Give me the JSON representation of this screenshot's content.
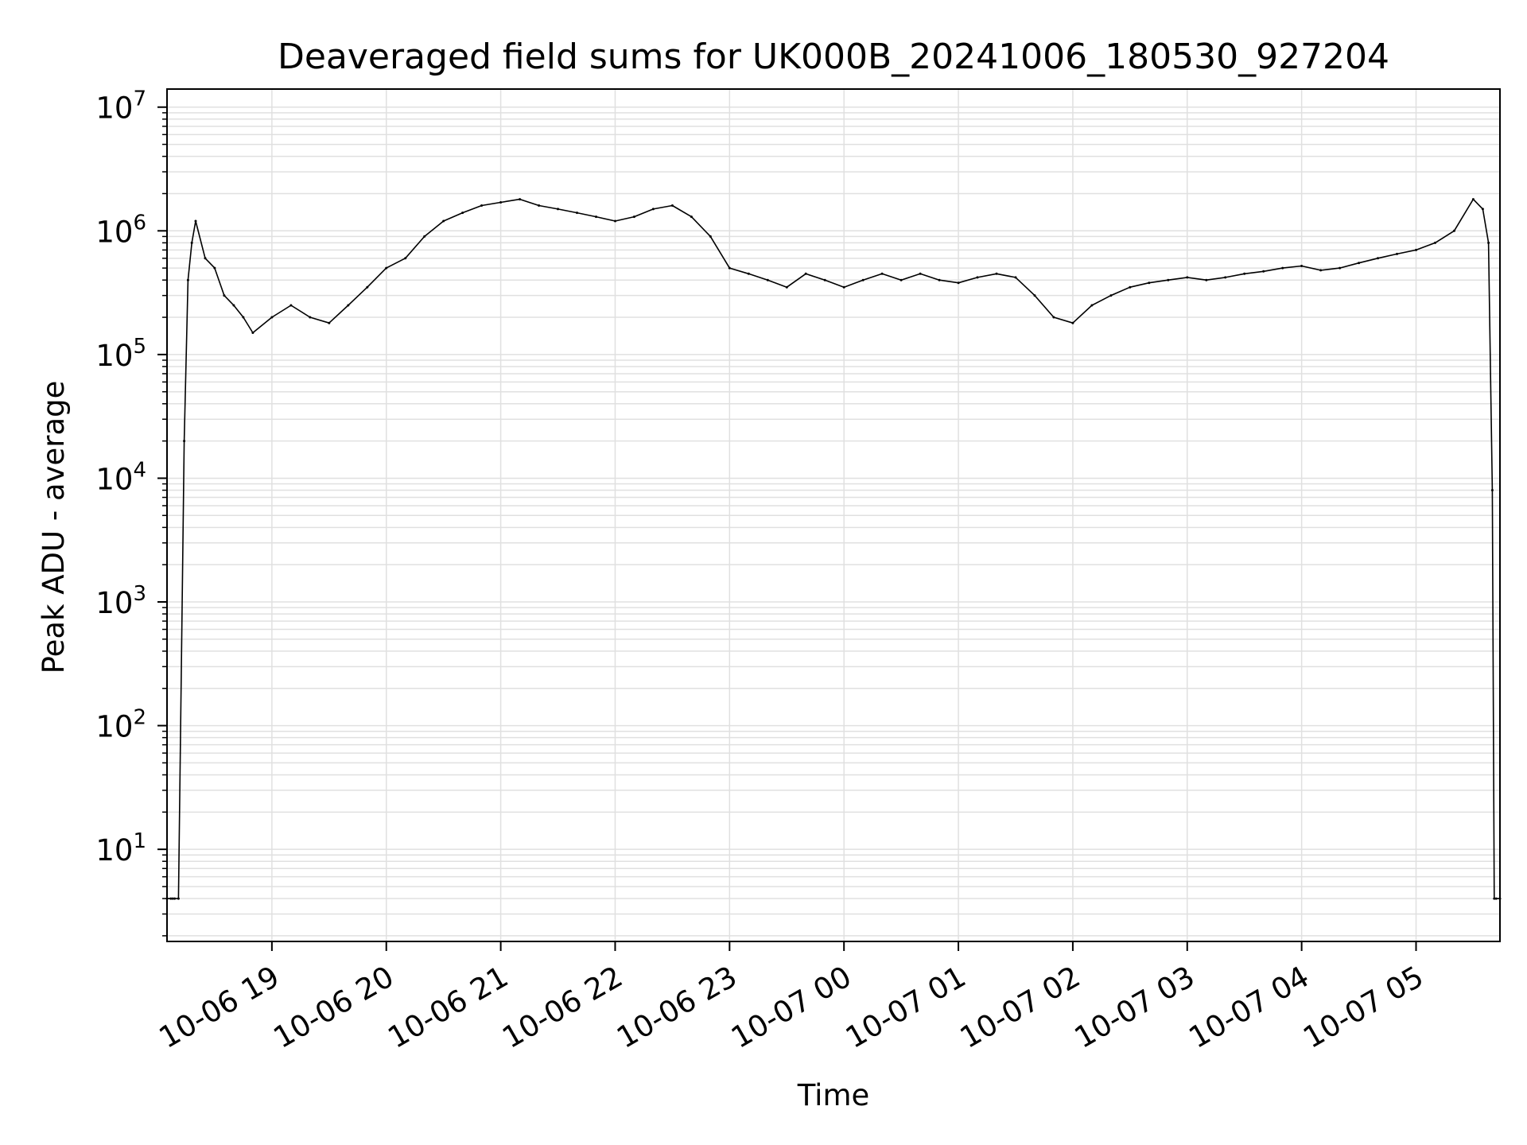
{
  "chart_data": {
    "type": "line",
    "title": "Deaveraged field sums for UK000B_20241006_180530_927204",
    "xlabel": "Time",
    "ylabel": "Peak ADU - average",
    "yscale": "log",
    "ylim": [
      1.8,
      14000000
    ],
    "xlim": [
      "2024-10-06 18:05",
      "2024-10-07 05:44"
    ],
    "grid": true,
    "line_color": "#000000",
    "grid_color": "#e0e0e0",
    "x_ticks": [
      {
        "value": "2024-10-06 19:00",
        "label": "10-06 19"
      },
      {
        "value": "2024-10-06 20:00",
        "label": "10-06 20"
      },
      {
        "value": "2024-10-06 21:00",
        "label": "10-06 21"
      },
      {
        "value": "2024-10-06 22:00",
        "label": "10-06 22"
      },
      {
        "value": "2024-10-06 23:00",
        "label": "10-06 23"
      },
      {
        "value": "2024-10-07 00:00",
        "label": "10-07 00"
      },
      {
        "value": "2024-10-07 01:00",
        "label": "10-07 01"
      },
      {
        "value": "2024-10-07 02:00",
        "label": "10-07 02"
      },
      {
        "value": "2024-10-07 03:00",
        "label": "10-07 03"
      },
      {
        "value": "2024-10-07 04:00",
        "label": "10-07 04"
      },
      {
        "value": "2024-10-07 05:00",
        "label": "10-07 05"
      }
    ],
    "y_ticks": [
      {
        "value": 10,
        "base": "10",
        "exp": "1"
      },
      {
        "value": 100,
        "base": "10",
        "exp": "2"
      },
      {
        "value": 1000,
        "base": "10",
        "exp": "3"
      },
      {
        "value": 10000,
        "base": "10",
        "exp": "4"
      },
      {
        "value": 100000,
        "base": "10",
        "exp": "5"
      },
      {
        "value": 1000000,
        "base": "10",
        "exp": "6"
      },
      {
        "value": 10000000,
        "base": "10",
        "exp": "7"
      }
    ],
    "series": [
      {
        "x": [
          "2024-10-06 18:05",
          "2024-10-06 18:07",
          "2024-10-06 18:08",
          "2024-10-06 18:09",
          "2024-10-06 18:11",
          "2024-10-06 18:14",
          "2024-10-06 18:16",
          "2024-10-06 18:18",
          "2024-10-06 18:20",
          "2024-10-06 18:25",
          "2024-10-06 18:30",
          "2024-10-06 18:35",
          "2024-10-06 18:40",
          "2024-10-06 18:45",
          "2024-10-06 18:50",
          "2024-10-06 19:00",
          "2024-10-06 19:10",
          "2024-10-06 19:20",
          "2024-10-06 19:30",
          "2024-10-06 19:40",
          "2024-10-06 19:50",
          "2024-10-06 20:00",
          "2024-10-06 20:10",
          "2024-10-06 20:20",
          "2024-10-06 20:30",
          "2024-10-06 20:40",
          "2024-10-06 20:50",
          "2024-10-06 21:00",
          "2024-10-06 21:10",
          "2024-10-06 21:20",
          "2024-10-06 21:30",
          "2024-10-06 21:40",
          "2024-10-06 21:50",
          "2024-10-06 22:00",
          "2024-10-06 22:10",
          "2024-10-06 22:20",
          "2024-10-06 22:30",
          "2024-10-06 22:40",
          "2024-10-06 22:50",
          "2024-10-06 23:00",
          "2024-10-06 23:10",
          "2024-10-06 23:20",
          "2024-10-06 23:30",
          "2024-10-06 23:40",
          "2024-10-06 23:50",
          "2024-10-07 00:00",
          "2024-10-07 00:10",
          "2024-10-07 00:20",
          "2024-10-07 00:30",
          "2024-10-07 00:40",
          "2024-10-07 00:50",
          "2024-10-07 01:00",
          "2024-10-07 01:10",
          "2024-10-07 01:20",
          "2024-10-07 01:30",
          "2024-10-07 01:40",
          "2024-10-07 01:50",
          "2024-10-07 02:00",
          "2024-10-07 02:10",
          "2024-10-07 02:20",
          "2024-10-07 02:30",
          "2024-10-07 02:40",
          "2024-10-07 02:50",
          "2024-10-07 03:00",
          "2024-10-07 03:10",
          "2024-10-07 03:20",
          "2024-10-07 03:30",
          "2024-10-07 03:40",
          "2024-10-07 03:50",
          "2024-10-07 04:00",
          "2024-10-07 04:10",
          "2024-10-07 04:20",
          "2024-10-07 04:30",
          "2024-10-07 04:40",
          "2024-10-07 04:50",
          "2024-10-07 05:00",
          "2024-10-07 05:10",
          "2024-10-07 05:20",
          "2024-10-07 05:30",
          "2024-10-07 05:35",
          "2024-10-07 05:38",
          "2024-10-07 05:40",
          "2024-10-07 05:41",
          "2024-10-07 05:42",
          "2024-10-07 05:44"
        ],
        "values": [
          4,
          4,
          4,
          4,
          4,
          20000,
          400000,
          800000,
          1200000,
          600000,
          500000,
          300000,
          250000,
          200000,
          150000,
          200000,
          250000,
          200000,
          180000,
          250000,
          350000,
          500000,
          600000,
          900000,
          1200000,
          1400000,
          1600000,
          1700000,
          1800000,
          1600000,
          1500000,
          1400000,
          1300000,
          1200000,
          1300000,
          1500000,
          1600000,
          1300000,
          900000,
          500000,
          450000,
          400000,
          350000,
          450000,
          400000,
          350000,
          400000,
          450000,
          400000,
          450000,
          400000,
          380000,
          420000,
          450000,
          420000,
          300000,
          200000,
          180000,
          250000,
          300000,
          350000,
          380000,
          400000,
          420000,
          400000,
          420000,
          450000,
          470000,
          500000,
          520000,
          480000,
          500000,
          550000,
          600000,
          650000,
          700000,
          800000,
          1000000,
          1800000,
          1500000,
          800000,
          8000,
          4,
          4,
          4
        ]
      }
    ]
  }
}
